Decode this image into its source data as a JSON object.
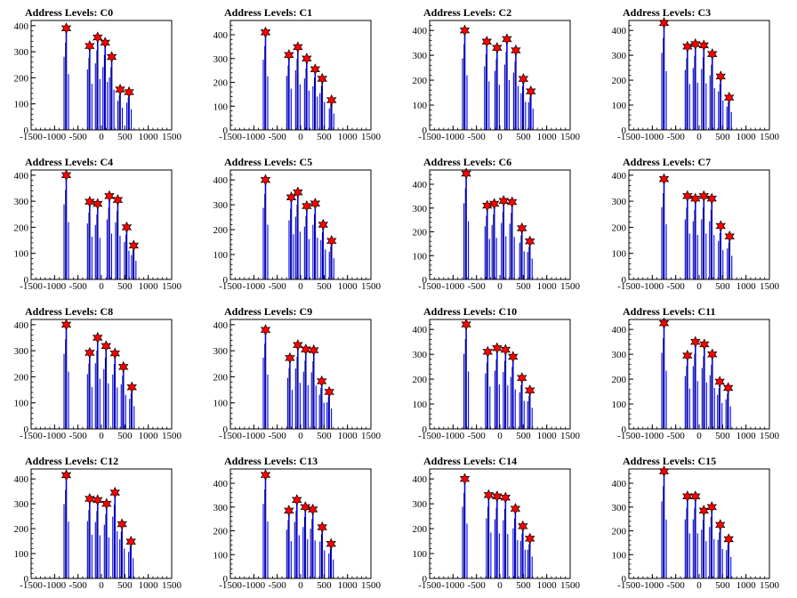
{
  "chart_data": {
    "type": "histogram-grid",
    "xlim": [
      -1500,
      1500
    ],
    "x_ticks": [
      -1500,
      -1000,
      -500,
      0,
      500,
      1000,
      1500
    ],
    "y_ticks": [
      0,
      100,
      200,
      300,
      400
    ],
    "colors": {
      "histogram": "#0000ff",
      "frame": "#000000",
      "marker": "#ff0000"
    },
    "peak_marker_icon": "red-star-icon",
    "panels": [
      {
        "title": "Address Levels: C0",
        "ylim": [
          0,
          420
        ],
        "peaks": [
          [
            -750,
            390
          ],
          [
            -250,
            322
          ],
          [
            -80,
            355
          ],
          [
            80,
            335
          ],
          [
            220,
            280
          ],
          [
            400,
            155
          ],
          [
            590,
            145
          ]
        ]
      },
      {
        "title": "Address Levels: C1",
        "ylim": [
          0,
          460
        ],
        "peaks": [
          [
            -750,
            410
          ],
          [
            -250,
            315
          ],
          [
            -60,
            348
          ],
          [
            130,
            300
          ],
          [
            310,
            255
          ],
          [
            460,
            215
          ],
          [
            660,
            125
          ]
        ]
      },
      {
        "title": "Address Levels: C2",
        "ylim": [
          0,
          440
        ],
        "peaks": [
          [
            -750,
            400
          ],
          [
            -280,
            355
          ],
          [
            -60,
            330
          ],
          [
            150,
            365
          ],
          [
            340,
            320
          ],
          [
            500,
            205
          ],
          [
            660,
            155
          ]
        ]
      },
      {
        "title": "Address Levels: C3",
        "ylim": [
          0,
          440
        ],
        "peaks": [
          [
            -750,
            430
          ],
          [
            -250,
            335
          ],
          [
            -80,
            345
          ],
          [
            100,
            340
          ],
          [
            280,
            305
          ],
          [
            460,
            215
          ],
          [
            640,
            130
          ]
        ]
      },
      {
        "title": "Address Levels: C4",
        "ylim": [
          0,
          420
        ],
        "peaks": [
          [
            -750,
            400
          ],
          [
            -250,
            298
          ],
          [
            -80,
            290
          ],
          [
            170,
            320
          ],
          [
            350,
            305
          ],
          [
            540,
            200
          ],
          [
            690,
            130
          ]
        ]
      },
      {
        "title": "Address Levels: C5",
        "ylim": [
          0,
          440
        ],
        "peaks": [
          [
            -750,
            400
          ],
          [
            -200,
            330
          ],
          [
            -60,
            350
          ],
          [
            130,
            295
          ],
          [
            310,
            305
          ],
          [
            480,
            220
          ],
          [
            660,
            155
          ]
        ]
      },
      {
        "title": "Address Levels: C6",
        "ylim": [
          0,
          460
        ],
        "peaks": [
          [
            -720,
            445
          ],
          [
            -270,
            310
          ],
          [
            -120,
            318
          ],
          [
            80,
            330
          ],
          [
            260,
            325
          ],
          [
            470,
            215
          ],
          [
            640,
            160
          ]
        ]
      },
      {
        "title": "Address Levels: C7",
        "ylim": [
          0,
          420
        ],
        "peaks": [
          [
            -750,
            385
          ],
          [
            -250,
            320
          ],
          [
            -80,
            310
          ],
          [
            100,
            320
          ],
          [
            270,
            310
          ],
          [
            460,
            205
          ],
          [
            650,
            165
          ]
        ]
      },
      {
        "title": "Address Levels: C8",
        "ylim": [
          0,
          420
        ],
        "peaks": [
          [
            -750,
            400
          ],
          [
            -250,
            292
          ],
          [
            -80,
            350
          ],
          [
            100,
            318
          ],
          [
            290,
            290
          ],
          [
            470,
            238
          ],
          [
            650,
            160
          ]
        ]
      },
      {
        "title": "Address Levels: C9",
        "ylim": [
          0,
          420
        ],
        "peaks": [
          [
            -750,
            380
          ],
          [
            -230,
            272
          ],
          [
            -60,
            322
          ],
          [
            110,
            305
          ],
          [
            280,
            302
          ],
          [
            450,
            183
          ],
          [
            610,
            142
          ]
        ]
      },
      {
        "title": "Address Levels: C10",
        "ylim": [
          0,
          440
        ],
        "peaks": [
          [
            -720,
            420
          ],
          [
            -260,
            310
          ],
          [
            -60,
            325
          ],
          [
            120,
            318
          ],
          [
            280,
            290
          ],
          [
            470,
            205
          ],
          [
            640,
            155
          ]
        ]
      },
      {
        "title": "Address Levels: C11",
        "ylim": [
          0,
          440
        ],
        "peaks": [
          [
            -750,
            425
          ],
          [
            -250,
            295
          ],
          [
            -80,
            350
          ],
          [
            110,
            340
          ],
          [
            280,
            300
          ],
          [
            440,
            190
          ],
          [
            620,
            165
          ]
        ]
      },
      {
        "title": "Address Levels: C12",
        "ylim": [
          0,
          440
        ],
        "peaks": [
          [
            -750,
            415
          ],
          [
            -250,
            320
          ],
          [
            -80,
            315
          ],
          [
            110,
            300
          ],
          [
            290,
            345
          ],
          [
            440,
            218
          ],
          [
            630,
            148
          ]
        ]
      },
      {
        "title": "Address Levels: C13",
        "ylim": [
          0,
          460
        ],
        "peaks": [
          [
            -750,
            435
          ],
          [
            -250,
            285
          ],
          [
            -80,
            330
          ],
          [
            100,
            300
          ],
          [
            260,
            290
          ],
          [
            460,
            215
          ],
          [
            650,
            145
          ]
        ]
      },
      {
        "title": "Address Levels: C14",
        "ylim": [
          0,
          440
        ],
        "peaks": [
          [
            -750,
            400
          ],
          [
            -240,
            335
          ],
          [
            -60,
            330
          ],
          [
            120,
            325
          ],
          [
            330,
            280
          ],
          [
            490,
            210
          ],
          [
            640,
            160
          ]
        ]
      },
      {
        "title": "Address Levels: C15",
        "ylim": [
          0,
          460
        ],
        "peaks": [
          [
            -750,
            450
          ],
          [
            -250,
            345
          ],
          [
            -80,
            345
          ],
          [
            100,
            285
          ],
          [
            270,
            300
          ],
          [
            450,
            225
          ],
          [
            630,
            165
          ]
        ]
      }
    ]
  }
}
